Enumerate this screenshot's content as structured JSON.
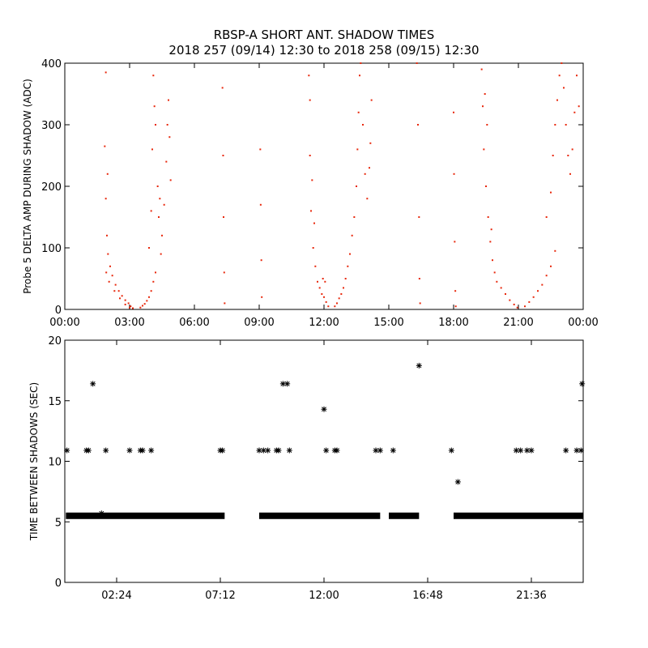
{
  "title_line1": "RBSP-A SHORT ANT. SHADOW TIMES",
  "title_line2": "2018 257 (09/14) 12:30 to 2018 258 (09/15) 12:30",
  "colors": {
    "amp_points": "#e8280c",
    "shadow_points": "#000000",
    "axes": "#000000",
    "background": "#ffffff"
  },
  "chart_data": [
    {
      "type": "scatter",
      "title": "",
      "ylabel": "Probe 5 DELTA AMP DURING SHADOW (ADC)",
      "xlabel": "",
      "x_unit": "hours",
      "xlim": [
        0,
        24
      ],
      "ylim": [
        0,
        400
      ],
      "x_tick_values": [
        0,
        3,
        6,
        9,
        12,
        15,
        18,
        21,
        24
      ],
      "x_tick_labels": [
        "00:00",
        "03:00",
        "06:00",
        "09:00",
        "12:00",
        "15:00",
        "18:00",
        "21:00",
        "00:00"
      ],
      "y_tick_values": [
        0,
        100,
        200,
        300,
        400
      ],
      "y_tick_labels": [
        "0",
        "100",
        "200",
        "300",
        "400"
      ],
      "series": [
        {
          "values": [
            [
              1.85,
              265
            ],
            [
              1.9,
              180
            ],
            [
              1.95,
              120
            ],
            [
              2.0,
              90
            ],
            [
              2.1,
              70
            ],
            [
              2.2,
              55
            ],
            [
              2.35,
              40
            ],
            [
              2.5,
              30
            ],
            [
              2.65,
              22
            ],
            [
              2.8,
              15
            ],
            [
              2.95,
              10
            ],
            [
              3.05,
              5
            ],
            [
              3.15,
              2
            ],
            [
              1.92,
              60
            ],
            [
              2.05,
              45
            ],
            [
              2.3,
              30
            ],
            [
              2.55,
              18
            ],
            [
              2.8,
              8
            ],
            [
              3.0,
              3
            ],
            [
              1.9,
              385
            ],
            [
              1.98,
              220
            ],
            [
              3.5,
              3
            ],
            [
              3.6,
              6
            ],
            [
              3.7,
              9
            ],
            [
              3.8,
              14
            ],
            [
              3.9,
              20
            ],
            [
              4.0,
              30
            ],
            [
              4.1,
              45
            ],
            [
              4.2,
              60
            ],
            [
              3.9,
              100
            ],
            [
              4.0,
              160
            ],
            [
              4.05,
              260
            ],
            [
              4.1,
              380
            ],
            [
              4.15,
              330
            ],
            [
              4.2,
              300
            ],
            [
              4.3,
              200
            ],
            [
              4.35,
              150
            ],
            [
              4.4,
              180
            ],
            [
              4.5,
              120
            ],
            [
              4.6,
              170
            ],
            [
              4.7,
              240
            ],
            [
              4.75,
              300
            ],
            [
              4.8,
              340
            ],
            [
              4.85,
              280
            ],
            [
              4.9,
              210
            ],
            [
              4.45,
              90
            ],
            [
              7.3,
              360
            ],
            [
              7.33,
              250
            ],
            [
              7.35,
              150
            ],
            [
              7.38,
              60
            ],
            [
              7.4,
              10
            ],
            [
              9.05,
              260
            ],
            [
              9.07,
              170
            ],
            [
              9.1,
              80
            ],
            [
              9.12,
              20
            ],
            [
              11.3,
              380
            ],
            [
              11.35,
              250
            ],
            [
              11.4,
              160
            ],
            [
              11.5,
              100
            ],
            [
              11.6,
              70
            ],
            [
              11.7,
              45
            ],
            [
              11.8,
              35
            ],
            [
              11.9,
              25
            ],
            [
              12.0,
              20
            ],
            [
              12.1,
              12
            ],
            [
              12.2,
              5
            ],
            [
              11.35,
              340
            ],
            [
              11.45,
              210
            ],
            [
              11.55,
              140
            ],
            [
              11.95,
              50
            ],
            [
              12.05,
              45
            ],
            [
              12.5,
              5
            ],
            [
              12.6,
              10
            ],
            [
              12.7,
              18
            ],
            [
              12.8,
              25
            ],
            [
              12.9,
              35
            ],
            [
              13.0,
              50
            ],
            [
              13.1,
              70
            ],
            [
              13.2,
              90
            ],
            [
              13.3,
              120
            ],
            [
              13.4,
              150
            ],
            [
              13.5,
              200
            ],
            [
              13.55,
              260
            ],
            [
              13.6,
              320
            ],
            [
              13.65,
              380
            ],
            [
              13.7,
              400
            ],
            [
              13.8,
              300
            ],
            [
              13.9,
              220
            ],
            [
              14.0,
              180
            ],
            [
              14.1,
              230
            ],
            [
              14.15,
              270
            ],
            [
              14.2,
              340
            ],
            [
              16.3,
              400
            ],
            [
              16.35,
              300
            ],
            [
              16.4,
              150
            ],
            [
              16.42,
              50
            ],
            [
              16.45,
              10
            ],
            [
              18.0,
              320
            ],
            [
              18.02,
              220
            ],
            [
              18.05,
              110
            ],
            [
              18.08,
              30
            ],
            [
              18.1,
              5
            ],
            [
              19.3,
              390
            ],
            [
              19.35,
              330
            ],
            [
              19.4,
              260
            ],
            [
              19.5,
              200
            ],
            [
              19.6,
              150
            ],
            [
              19.7,
              110
            ],
            [
              19.8,
              80
            ],
            [
              19.9,
              60
            ],
            [
              20.0,
              45
            ],
            [
              20.2,
              35
            ],
            [
              20.4,
              25
            ],
            [
              20.6,
              15
            ],
            [
              20.8,
              8
            ],
            [
              20.95,
              3
            ],
            [
              19.45,
              350
            ],
            [
              19.55,
              300
            ],
            [
              19.75,
              130
            ],
            [
              21.3,
              5
            ],
            [
              21.5,
              12
            ],
            [
              21.7,
              20
            ],
            [
              21.9,
              30
            ],
            [
              22.1,
              40
            ],
            [
              22.3,
              55
            ],
            [
              22.5,
              70
            ],
            [
              22.7,
              95
            ],
            [
              22.3,
              150
            ],
            [
              22.5,
              190
            ],
            [
              22.6,
              250
            ],
            [
              22.7,
              300
            ],
            [
              22.8,
              340
            ],
            [
              22.9,
              380
            ],
            [
              23.0,
              400
            ],
            [
              23.1,
              360
            ],
            [
              23.2,
              300
            ],
            [
              23.3,
              250
            ],
            [
              23.4,
              220
            ],
            [
              23.5,
              260
            ],
            [
              23.6,
              320
            ],
            [
              23.7,
              380
            ],
            [
              23.8,
              330
            ]
          ]
        }
      ]
    },
    {
      "type": "scatter",
      "title": "",
      "ylabel": "TIME BETWEEN SHADOWS (SEC)",
      "xlabel": "",
      "x_unit": "hours",
      "xlim": [
        0,
        24
      ],
      "ylim": [
        0,
        20
      ],
      "x_tick_values": [
        2.4,
        7.2,
        12.0,
        16.8,
        21.6
      ],
      "x_tick_labels": [
        "02:24",
        "07:12",
        "12:00",
        "16:48",
        "21:36"
      ],
      "y_tick_values": [
        0,
        5,
        10,
        15,
        20
      ],
      "y_tick_labels": [
        "0",
        "5",
        "10",
        "15",
        "20"
      ],
      "marker": "asterisk",
      "series": [
        {
          "dense_segments": [
            [
              0.05,
              7.4,
              5.5
            ],
            [
              9.0,
              14.6,
              5.5
            ],
            [
              15.0,
              16.4,
              5.5
            ],
            [
              18.0,
              24.0,
              5.5
            ]
          ],
          "values": [
            [
              0.1,
              10.9
            ],
            [
              1.0,
              10.9
            ],
            [
              1.1,
              10.9
            ],
            [
              1.3,
              16.4
            ],
            [
              1.7,
              5.7
            ],
            [
              1.9,
              10.9
            ],
            [
              3.0,
              10.9
            ],
            [
              3.5,
              10.9
            ],
            [
              3.6,
              10.9
            ],
            [
              4.0,
              10.9
            ],
            [
              7.2,
              10.9
            ],
            [
              7.3,
              10.9
            ],
            [
              9.0,
              10.9
            ],
            [
              9.2,
              10.9
            ],
            [
              9.4,
              10.9
            ],
            [
              9.8,
              10.9
            ],
            [
              9.9,
              10.9
            ],
            [
              10.1,
              16.4
            ],
            [
              10.3,
              16.4
            ],
            [
              10.4,
              10.9
            ],
            [
              12.0,
              14.3
            ],
            [
              12.1,
              10.9
            ],
            [
              12.5,
              10.9
            ],
            [
              12.6,
              10.9
            ],
            [
              14.4,
              10.9
            ],
            [
              14.6,
              10.9
            ],
            [
              15.2,
              10.9
            ],
            [
              16.4,
              17.9
            ],
            [
              17.9,
              10.9
            ],
            [
              18.2,
              8.3
            ],
            [
              20.9,
              10.9
            ],
            [
              21.1,
              10.9
            ],
            [
              21.4,
              10.9
            ],
            [
              21.6,
              10.9
            ],
            [
              23.2,
              10.9
            ],
            [
              23.7,
              10.9
            ],
            [
              23.9,
              10.9
            ],
            [
              23.95,
              16.4
            ]
          ]
        }
      ]
    }
  ]
}
